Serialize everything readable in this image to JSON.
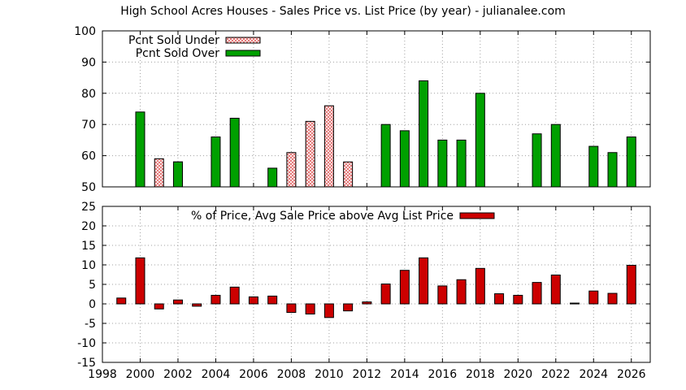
{
  "title": "High School Acres Houses - Sales Price vs. List Price (by year) - julianalee.com",
  "colors": {
    "over": "#00a000",
    "under_hatch": "#e06060",
    "pct": "#cc0000"
  },
  "x_ticks": [
    "1998",
    "2000",
    "2002",
    "2004",
    "2006",
    "2008",
    "2010",
    "2012",
    "2014",
    "2016",
    "2018",
    "2020",
    "2022",
    "2024",
    "2026"
  ],
  "top_y_ticks": [
    "100",
    "90",
    "80",
    "70",
    "60",
    "50"
  ],
  "bottom_y_ticks": [
    "25",
    "20",
    "15",
    "10",
    "5",
    "0",
    "-5",
    "-10",
    "-15"
  ],
  "chart_data": [
    {
      "type": "bar",
      "xlim": [
        1998,
        2027
      ],
      "ylim": [
        50,
        100
      ],
      "grid": true,
      "legend": "top-left",
      "series": [
        {
          "name": "Pcnt Sold Under",
          "x": [
            2001,
            2002,
            2008,
            2009,
            2010,
            2011
          ],
          "values": [
            59,
            58,
            61,
            71,
            76,
            58
          ]
        },
        {
          "name": "Pcnt Sold Over",
          "x": [
            2000,
            2002,
            2004,
            2005,
            2007,
            2013,
            2014,
            2015,
            2016,
            2017,
            2018,
            2021,
            2022,
            2024,
            2025,
            2026
          ],
          "values": [
            74,
            58,
            66,
            72,
            56,
            70,
            68,
            84,
            65,
            65,
            80,
            67,
            70,
            63,
            61,
            66
          ]
        }
      ]
    },
    {
      "type": "bar",
      "xlim": [
        1998,
        2027
      ],
      "ylim": [
        -15,
        25
      ],
      "grid": true,
      "legend": "top-center",
      "series": [
        {
          "name": "% of Price, Avg Sale Price above Avg List Price",
          "x": [
            1999,
            2000,
            2001,
            2002,
            2003,
            2004,
            2005,
            2006,
            2007,
            2008,
            2009,
            2010,
            2011,
            2012,
            2013,
            2014,
            2015,
            2016,
            2017,
            2018,
            2019,
            2020,
            2021,
            2022,
            2023,
            2024,
            2025,
            2026
          ],
          "values": [
            1.5,
            11.8,
            -1.3,
            1.0,
            -0.6,
            2.2,
            4.3,
            1.8,
            2.0,
            -2.2,
            -2.6,
            -3.5,
            -1.8,
            0.5,
            5.1,
            8.6,
            11.8,
            4.6,
            6.2,
            9.1,
            2.6,
            2.2,
            5.5,
            7.4,
            0.2,
            3.3,
            2.7,
            9.9
          ]
        }
      ]
    }
  ]
}
